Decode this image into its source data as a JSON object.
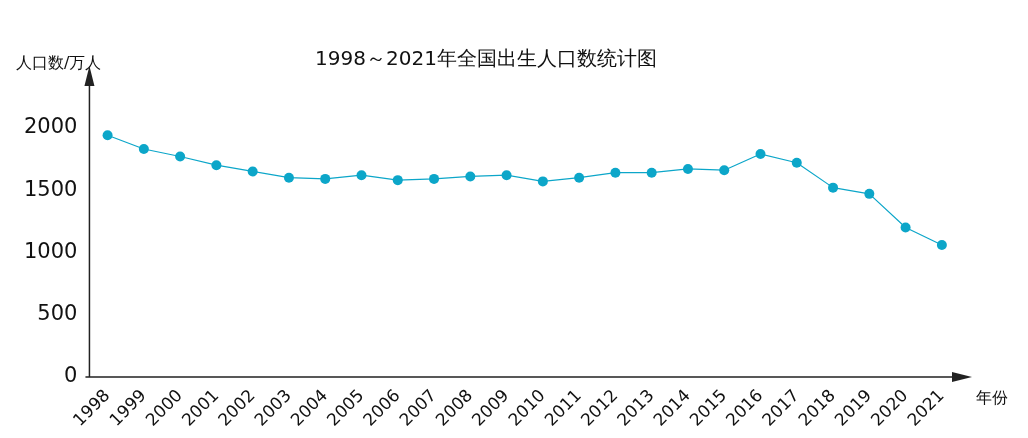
{
  "chart_data": {
    "type": "line",
    "title": "1998～2021年全国出生人口数统计图",
    "xlabel": "年份",
    "ylabel": "人口数/万人",
    "categories": [
      "1998",
      "1999",
      "2000",
      "2001",
      "2002",
      "2003",
      "2004",
      "2005",
      "2006",
      "2007",
      "2008",
      "2009",
      "2010",
      "2011",
      "2012",
      "2013",
      "2014",
      "2015",
      "2016",
      "2017",
      "2018",
      "2019",
      "2020",
      "2021"
    ],
    "series": [
      {
        "color": "#0ca6c9",
        "values": [
          1940,
          1830,
          1770,
          1700,
          1650,
          1600,
          1590,
          1620,
          1580,
          1590,
          1610,
          1620,
          1570,
          1600,
          1640,
          1640,
          1670,
          1660,
          1790,
          1720,
          1520,
          1470,
          1200,
          1060
        ]
      }
    ],
    "ylim": [
      0,
      2400
    ],
    "yticks": [
      0,
      500,
      1000,
      1500,
      2000
    ],
    "grid": false,
    "legend": false,
    "marker": "circle",
    "line_style": "solid"
  }
}
